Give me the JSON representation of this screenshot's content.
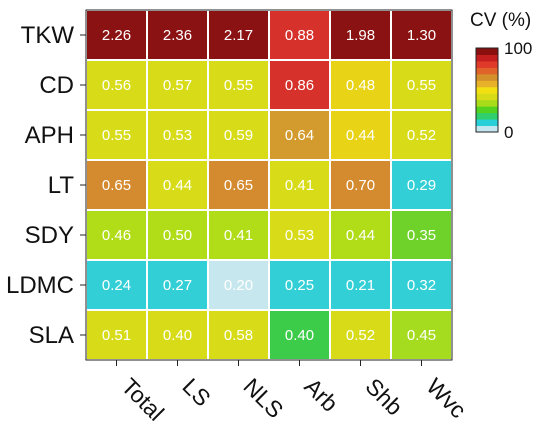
{
  "chart_data": {
    "type": "heatmap",
    "rows": [
      "TKW",
      "CD",
      "APH",
      "LT",
      "SDY",
      "LDMC",
      "SLA"
    ],
    "columns": [
      "Total",
      "LS",
      "NLS",
      "Arb",
      "Shb",
      "Wvc"
    ],
    "cell_labels": [
      [
        "2.26",
        "2.36",
        "2.17",
        "0.88",
        "1.98",
        "1.30"
      ],
      [
        "0.56",
        "0.57",
        "0.55",
        "0.86",
        "0.48",
        "0.55"
      ],
      [
        "0.55",
        "0.53",
        "0.59",
        "0.64",
        "0.44",
        "0.52"
      ],
      [
        "0.65",
        "0.44",
        "0.65",
        "0.41",
        "0.70",
        "0.29"
      ],
      [
        "0.46",
        "0.50",
        "0.41",
        "0.53",
        "0.44",
        "0.35"
      ],
      [
        "0.24",
        "0.27",
        "0.20",
        "0.25",
        "0.21",
        "0.32"
      ],
      [
        "0.51",
        "0.40",
        "0.58",
        "0.40",
        "0.52",
        "0.45"
      ]
    ],
    "colorbar": {
      "title": "CV (%)",
      "min_label": "0",
      "max_label": "100",
      "range": [
        0,
        100
      ],
      "colors": [
        "#c4e6f0",
        "#27d0d8",
        "#2fcf6e",
        "#53d320",
        "#a8dc18",
        "#d8dc18",
        "#f3e012",
        "#e8b12a",
        "#d4902a",
        "#e0632a",
        "#e03a2a",
        "#c41e1e",
        "#8a1010"
      ]
    },
    "cell_colors": [
      [
        "#8b1212",
        "#8b1212",
        "#8b1212",
        "#d6322b",
        "#8b1212",
        "#8b1212"
      ],
      [
        "#d8dc18",
        "#d8dc18",
        "#d8dc18",
        "#d6322b",
        "#e8d316",
        "#d8dc18"
      ],
      [
        "#d8dc18",
        "#d8dc18",
        "#d8dc18",
        "#d39a2e",
        "#e8d316",
        "#d8dc18"
      ],
      [
        "#d48a2e",
        "#d8dc18",
        "#d48a2e",
        "#d8dc18",
        "#d48a2e",
        "#33cfd6"
      ],
      [
        "#b0dc18",
        "#b0dc18",
        "#b0dc18",
        "#d8dc18",
        "#b0dc18",
        "#6fd22a"
      ],
      [
        "#33cfd6",
        "#33cfd6",
        "#c6e7ee",
        "#33cfd6",
        "#33cfd6",
        "#33cfd6"
      ],
      [
        "#d8dc18",
        "#d8dc18",
        "#d8dc18",
        "#3ccc4a",
        "#d8dc18",
        "#a6dc1f"
      ]
    ]
  }
}
